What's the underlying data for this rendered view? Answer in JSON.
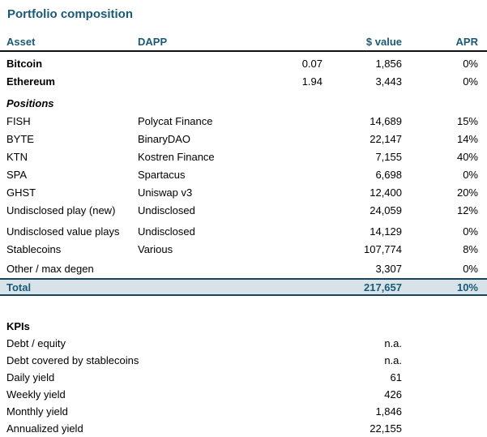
{
  "title": "Portfolio composition",
  "colors": {
    "accent_teal": "#1B5A75",
    "total_row_background": "#D8E3E9",
    "total_row_border": "#16455C",
    "header_underline": "#111111"
  },
  "table": {
    "headers": {
      "asset": "Asset",
      "dapp": "DAPP",
      "value": "$ value",
      "apr": "APR"
    },
    "rows": [
      {
        "asset": "Bitcoin",
        "dapp": "",
        "qty": "0.07",
        "value": "1,856",
        "apr": "0%"
      },
      {
        "asset": "Ethereum",
        "dapp": "",
        "qty": "1.94",
        "value": "3,443",
        "apr": "0%"
      },
      {
        "asset": "FISH",
        "dapp": "Polycat Finance",
        "qty": "",
        "value": "14,689",
        "apr": "15%"
      },
      {
        "asset": "BYTE",
        "dapp": "BinaryDAO",
        "qty": "",
        "value": "22,147",
        "apr": "14%"
      },
      {
        "asset": "KTN",
        "dapp": "Kostren Finance",
        "qty": "",
        "value": "7,155",
        "apr": "40%"
      },
      {
        "asset": "SPA",
        "dapp": "Spartacus",
        "qty": "",
        "value": "6,698",
        "apr": "0%"
      },
      {
        "asset": "GHST",
        "dapp": "Uniswap v3",
        "qty": "",
        "value": "12,400",
        "apr": "20%"
      },
      {
        "asset": "Undisclosed play (new)",
        "dapp": "Undisclosed",
        "qty": "",
        "value": "24,059",
        "apr": "12%"
      },
      {
        "asset": "Undisclosed value plays",
        "dapp": "Undisclosed",
        "qty": "",
        "value": "14,129",
        "apr": "0%"
      },
      {
        "asset": "Stablecoins",
        "dapp": "Various",
        "qty": "",
        "value": "107,774",
        "apr": "8%"
      },
      {
        "asset": "Other / max degen",
        "dapp": "",
        "qty": "",
        "value": "3,307",
        "apr": "0%"
      }
    ],
    "section_label": "Positions",
    "total": {
      "label": "Total",
      "value": "217,657",
      "apr": "10%"
    }
  },
  "kpis": {
    "title": "KPIs",
    "items": [
      {
        "label": "Debt / equity",
        "value": "n.a."
      },
      {
        "label": "Debt covered by stablecoins",
        "value": "n.a."
      },
      {
        "label": "Daily yield",
        "value": "61"
      },
      {
        "label": "Weekly yield",
        "value": "426"
      },
      {
        "label": "Monthly yield",
        "value": "1,846"
      },
      {
        "label": "Annualized yield",
        "value": "22,155"
      }
    ]
  }
}
